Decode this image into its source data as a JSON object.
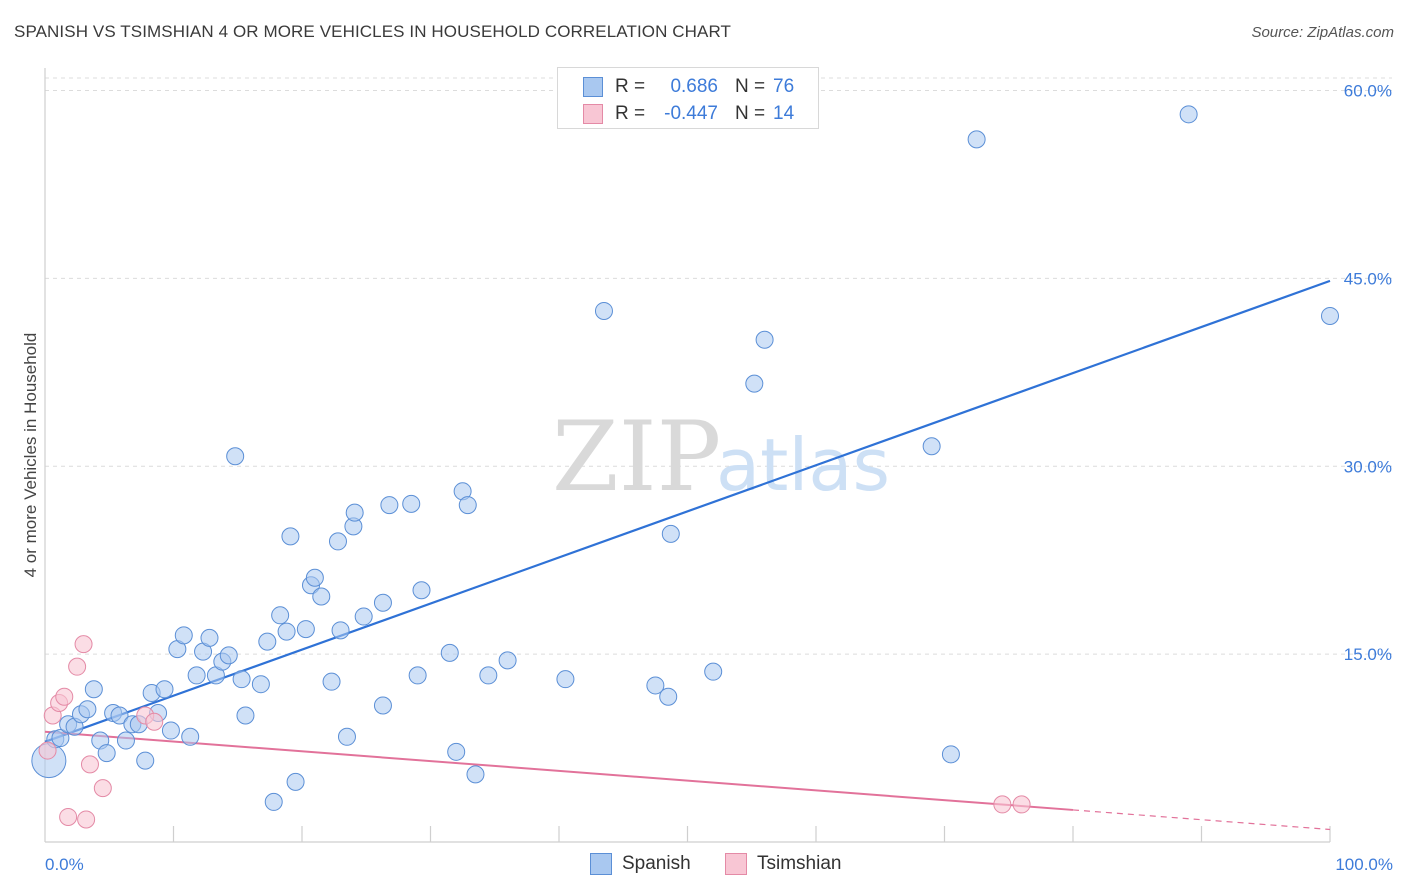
{
  "header": {
    "title": "SPANISH VS TSIMSHIAN 4 OR MORE VEHICLES IN HOUSEHOLD CORRELATION CHART",
    "source": "Source: ZipAtlas.com"
  },
  "watermark": {
    "zip": "ZIP",
    "atlas": "atlas"
  },
  "stats": [
    {
      "r_label": "R =",
      "r_value": "0.686",
      "n_label": "N =",
      "n_value": "76",
      "color": "#a9c8f0",
      "border": "#5b8fd6"
    },
    {
      "r_label": "R =",
      "r_value": "-0.447",
      "n_label": "N =",
      "n_value": "14",
      "color": "#f8c6d4",
      "border": "#e48aa6"
    }
  ],
  "legend": [
    {
      "label": "Spanish",
      "color": "#a9c8f0",
      "border": "#5b8fd6"
    },
    {
      "label": "Tsimshian",
      "color": "#f8c6d4",
      "border": "#e48aa6"
    }
  ],
  "chart_data": {
    "type": "scatter",
    "title": "SPANISH VS TSIMSHIAN 4 OR MORE VEHICLES IN HOUSEHOLD CORRELATION CHART",
    "xlabel": "",
    "ylabel": "4 or more Vehicles in Household",
    "xlim": [
      0,
      100
    ],
    "ylim": [
      0,
      61
    ],
    "x_tick_labels": [
      {
        "value": 0,
        "label": "0.0%"
      },
      {
        "value": 100,
        "label": "100.0%"
      }
    ],
    "y_tick_labels": [
      {
        "value": 15,
        "label": "15.0%"
      },
      {
        "value": 30,
        "label": "30.0%"
      },
      {
        "value": 45,
        "label": "45.0%"
      },
      {
        "value": 60,
        "label": "60.0%"
      }
    ],
    "grid": "horizontal dashed",
    "legend_position": "bottom",
    "colors": {
      "spanish_fill": "#a9c8f0",
      "spanish_stroke": "#5b8fd6",
      "spanish_line": "#2f72d6",
      "tsimshian_fill": "#f8c6d4",
      "tsimshian_stroke": "#e48aa6",
      "tsimshian_line": "#e2729a"
    },
    "series": [
      {
        "name": "Spanish",
        "points": [
          [
            0.3,
            6.5
          ],
          [
            0.8,
            8.2
          ],
          [
            1.2,
            8.3
          ],
          [
            1.8,
            9.4
          ],
          [
            2.3,
            9.2
          ],
          [
            2.8,
            10.2
          ],
          [
            3.3,
            10.6
          ],
          [
            3.8,
            12.2
          ],
          [
            4.3,
            8.1
          ],
          [
            4.8,
            7.1
          ],
          [
            5.3,
            10.3
          ],
          [
            5.8,
            10.1
          ],
          [
            6.3,
            8.1
          ],
          [
            6.8,
            9.4
          ],
          [
            7.3,
            9.4
          ],
          [
            7.8,
            6.5
          ],
          [
            8.3,
            11.9
          ],
          [
            8.8,
            10.3
          ],
          [
            9.3,
            12.2
          ],
          [
            9.8,
            8.9
          ],
          [
            10.3,
            15.4
          ],
          [
            10.8,
            16.5
          ],
          [
            11.3,
            8.4
          ],
          [
            11.8,
            13.3
          ],
          [
            12.3,
            15.2
          ],
          [
            12.8,
            16.3
          ],
          [
            13.3,
            13.3
          ],
          [
            13.8,
            14.4
          ],
          [
            14.3,
            14.9
          ],
          [
            14.8,
            30.8
          ],
          [
            15.3,
            13.0
          ],
          [
            15.6,
            10.1
          ],
          [
            16.8,
            12.6
          ],
          [
            17.3,
            16.0
          ],
          [
            17.8,
            3.2
          ],
          [
            18.3,
            18.1
          ],
          [
            18.8,
            16.8
          ],
          [
            19.1,
            24.4
          ],
          [
            19.5,
            4.8
          ],
          [
            20.3,
            17.0
          ],
          [
            20.7,
            20.5
          ],
          [
            21.0,
            21.1
          ],
          [
            21.5,
            19.6
          ],
          [
            22.3,
            12.8
          ],
          [
            22.8,
            24.0
          ],
          [
            23.0,
            16.9
          ],
          [
            23.5,
            8.4
          ],
          [
            24.0,
            25.2
          ],
          [
            24.1,
            26.3
          ],
          [
            24.8,
            18.0
          ],
          [
            26.3,
            19.1
          ],
          [
            26.3,
            10.9
          ],
          [
            26.8,
            26.9
          ],
          [
            28.5,
            27.0
          ],
          [
            29.0,
            13.3
          ],
          [
            29.3,
            20.1
          ],
          [
            31.5,
            15.1
          ],
          [
            32.0,
            7.2
          ],
          [
            32.5,
            28.0
          ],
          [
            32.9,
            26.9
          ],
          [
            33.5,
            5.4
          ],
          [
            34.5,
            13.3
          ],
          [
            36.0,
            14.5
          ],
          [
            40.5,
            13.0
          ],
          [
            43.5,
            42.4
          ],
          [
            47.5,
            12.5
          ],
          [
            48.5,
            11.6
          ],
          [
            48.7,
            24.6
          ],
          [
            52.0,
            13.6
          ],
          [
            55.2,
            36.6
          ],
          [
            56.0,
            40.1
          ],
          [
            69.0,
            31.6
          ],
          [
            70.5,
            7.0
          ],
          [
            72.5,
            56.1
          ],
          [
            89.0,
            58.1
          ],
          [
            100.0,
            42.0
          ]
        ]
      },
      {
        "name": "Tsimshian",
        "points": [
          [
            0.2,
            7.3
          ],
          [
            0.6,
            10.1
          ],
          [
            1.1,
            11.1
          ],
          [
            1.5,
            11.6
          ],
          [
            1.8,
            2.0
          ],
          [
            2.5,
            14.0
          ],
          [
            3.0,
            15.8
          ],
          [
            3.2,
            1.8
          ],
          [
            3.5,
            6.2
          ],
          [
            4.5,
            4.3
          ],
          [
            7.8,
            10.1
          ],
          [
            8.5,
            9.6
          ],
          [
            74.5,
            3.0
          ],
          [
            76.0,
            3.0
          ]
        ]
      }
    ],
    "trend_lines": [
      {
        "series": "Spanish",
        "x": [
          0,
          100
        ],
        "y": [
          8.0,
          44.8
        ]
      },
      {
        "series": "Tsimshian",
        "x": [
          0,
          100
        ],
        "y": [
          8.8,
          1.0
        ],
        "solid_until_x": 80
      }
    ]
  }
}
